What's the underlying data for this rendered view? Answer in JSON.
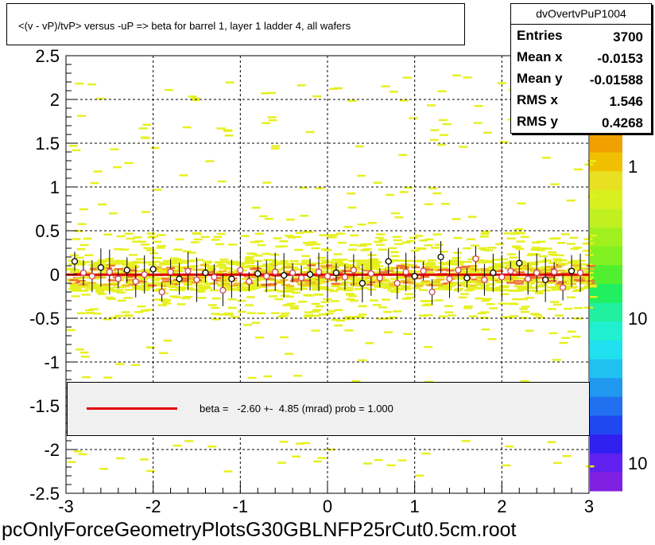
{
  "title": "<(v - vP)/tvP> versus  -uP => beta for barrel 1, layer 1 ladder 4, all wafers",
  "footer": "pcOnlyForceGeometryPlotsG30GBLNFP25rCut0.5cm.root",
  "stats": {
    "name": "dvOvertvPuP1004",
    "rows": [
      {
        "label": "Entries",
        "value": "3700"
      },
      {
        "label": "Mean x",
        "value": "-0.0153"
      },
      {
        "label": "Mean y",
        "value": "-0.01588"
      },
      {
        "label": "RMS x",
        "value": "1.546"
      },
      {
        "label": "RMS y",
        "value": "0.4268"
      }
    ]
  },
  "legend": {
    "text": "beta =   -2.60 +-  4.85 (mrad) prob = 1.000",
    "line_color": "#e00000"
  },
  "palette": {
    "labels": [
      "1",
      "10",
      "10"
    ]
  },
  "chart_data": {
    "type": "heatmap",
    "title": "<(v - vP)/tvP> versus  -uP => beta for barrel 1, layer 1 ladder 4, all wafers",
    "xlim": [
      -3,
      3
    ],
    "ylim": [
      -2.5,
      2.5
    ],
    "x_ticks": [
      "-3",
      "-2",
      "-1",
      "0",
      "1",
      "2",
      "3"
    ],
    "y_ticks": [
      "-2.5",
      "-2",
      "-1.5",
      "-1",
      "-0.5",
      "0",
      "0.5",
      "1",
      "1.5",
      "2",
      "2.5"
    ],
    "grid": true,
    "fit_line": {
      "y": -0.0026
    },
    "profile_points": [
      {
        "x": -2.9,
        "y": 0.15
      },
      {
        "x": -2.8,
        "y": 0.02
      },
      {
        "x": -2.7,
        "y": -0.02
      },
      {
        "x": -2.6,
        "y": 0.08
      },
      {
        "x": -2.5,
        "y": 0.03
      },
      {
        "x": -2.4,
        "y": -0.05
      },
      {
        "x": -2.3,
        "y": 0.05
      },
      {
        "x": -2.2,
        "y": -0.08
      },
      {
        "x": -2.1,
        "y": 0.0
      },
      {
        "x": -2.0,
        "y": 0.06
      },
      {
        "x": -1.9,
        "y": -0.2
      },
      {
        "x": -1.8,
        "y": 0.03
      },
      {
        "x": -1.7,
        "y": -0.05
      },
      {
        "x": -1.6,
        "y": 0.04
      },
      {
        "x": -1.5,
        "y": -0.06
      },
      {
        "x": -1.4,
        "y": 0.02
      },
      {
        "x": -1.3,
        "y": -0.03
      },
      {
        "x": -1.2,
        "y": -0.18
      },
      {
        "x": -1.1,
        "y": -0.05
      },
      {
        "x": -1.0,
        "y": 0.05
      },
      {
        "x": -0.9,
        "y": -0.08
      },
      {
        "x": -0.8,
        "y": 0.01
      },
      {
        "x": -0.7,
        "y": -0.02
      },
      {
        "x": -0.6,
        "y": 0.03
      },
      {
        "x": -0.5,
        "y": -0.01
      },
      {
        "x": -0.4,
        "y": 0.02
      },
      {
        "x": -0.3,
        "y": -0.04
      },
      {
        "x": -0.2,
        "y": 0.0
      },
      {
        "x": -0.1,
        "y": 0.03
      },
      {
        "x": 0.0,
        "y": -0.02
      },
      {
        "x": 0.1,
        "y": 0.02
      },
      {
        "x": 0.2,
        "y": -0.03
      },
      {
        "x": 0.3,
        "y": 0.05
      },
      {
        "x": 0.4,
        "y": -0.1
      },
      {
        "x": 0.5,
        "y": 0.01
      },
      {
        "x": 0.6,
        "y": -0.04
      },
      {
        "x": 0.7,
        "y": 0.15
      },
      {
        "x": 0.8,
        "y": -0.1
      },
      {
        "x": 0.9,
        "y": 0.03
      },
      {
        "x": 1.0,
        "y": -0.02
      },
      {
        "x": 1.1,
        "y": 0.04
      },
      {
        "x": 1.2,
        "y": -0.2
      },
      {
        "x": 1.3,
        "y": 0.2
      },
      {
        "x": 1.4,
        "y": -0.05
      },
      {
        "x": 1.5,
        "y": 0.05
      },
      {
        "x": 1.6,
        "y": -0.04
      },
      {
        "x": 1.7,
        "y": 0.18
      },
      {
        "x": 1.8,
        "y": -0.06
      },
      {
        "x": 1.9,
        "y": 0.02
      },
      {
        "x": 2.0,
        "y": -0.03
      },
      {
        "x": 2.1,
        "y": 0.04
      },
      {
        "x": 2.2,
        "y": 0.13
      },
      {
        "x": 2.3,
        "y": -0.05
      },
      {
        "x": 2.4,
        "y": 0.02
      },
      {
        "x": 2.5,
        "y": -0.06
      },
      {
        "x": 2.6,
        "y": 0.03
      },
      {
        "x": 2.7,
        "y": -0.15
      },
      {
        "x": 2.8,
        "y": 0.04
      },
      {
        "x": 2.9,
        "y": 0.02
      }
    ]
  },
  "colors": {
    "axis": "#000000",
    "fit": "#e00000",
    "hist_low": "#e6f020",
    "hist_mid": "#f0c020",
    "hist_high": "#f07030"
  }
}
